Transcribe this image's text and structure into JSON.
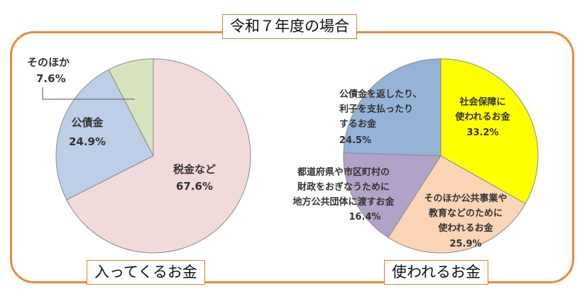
{
  "title": "令和７年度の場合",
  "colors": {
    "frame": "#ec8a3c",
    "caption_border": "#e07b2b"
  },
  "chart_data": [
    {
      "type": "pie",
      "caption": "入ってくるお金",
      "slices": [
        {
          "label": "税金など",
          "value": 67.6,
          "value_text": "67.6%",
          "color": "#f2d9da"
        },
        {
          "label": "公債金",
          "value": 24.9,
          "value_text": "24.9%",
          "color": "#bccfe6"
        },
        {
          "label": "そのほか",
          "value": 7.6,
          "value_text": "7.6%",
          "color": "#d8e4bd"
        }
      ]
    },
    {
      "type": "pie",
      "caption": "使われるお金",
      "slices": [
        {
          "label_lines": [
            "社会保障に",
            "使われるお金"
          ],
          "value": 33.2,
          "value_text": "33.2%",
          "color": "#ffff00"
        },
        {
          "label_lines": [
            "そのほか公共事業や",
            "教育などのために",
            "使われるお金"
          ],
          "value": 25.9,
          "value_text": "25.9%",
          "color": "#fbd5b5"
        },
        {
          "label_lines": [
            "都道府県や市区町村の",
            "財政をおぎなうために",
            "地方公共団体に渡すお金"
          ],
          "value": 16.4,
          "value_text": "16.4%",
          "color": "#b3a2c7"
        },
        {
          "label_lines": [
            "公債金を返したり、",
            "利子を支払ったり",
            "するお金"
          ],
          "value": 24.5,
          "value_text": "24.5%",
          "color": "#95b3d7"
        }
      ]
    }
  ]
}
